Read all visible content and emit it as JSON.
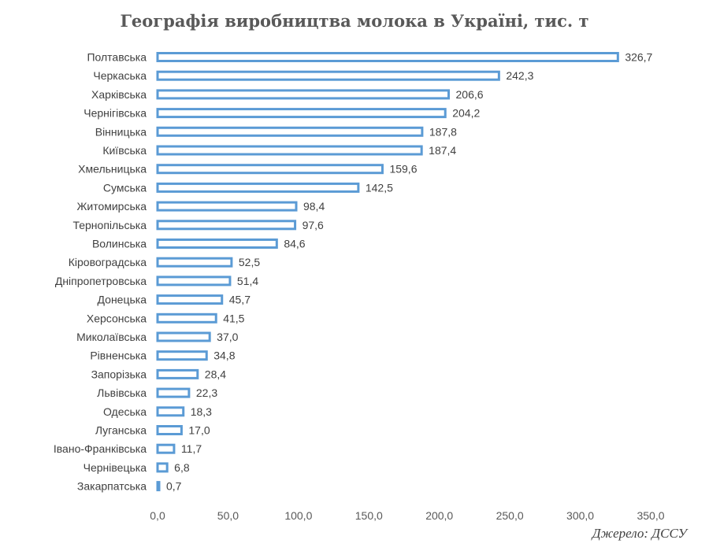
{
  "chart_data": {
    "type": "bar",
    "orientation": "horizontal",
    "title": "Географія виробництва молока в Україні, тис. т",
    "source": "Джерело: ДССУ",
    "categories": [
      "Полтавська",
      "Черкаська",
      "Харківська",
      "Чернігівська",
      "Вінницька",
      "Київська",
      "Хмельницька",
      "Сумська",
      "Житомирська",
      "Тернопільська",
      "Волинська",
      "Кіровоградська",
      "Дніпропетровська",
      "Донецька",
      "Херсонська",
      "Миколаївська",
      "Рівненська",
      "Запорізька",
      "Львівська",
      "Одеська",
      "Луганська",
      "Івано-Франківська",
      "Чернівецька",
      "Закарпатська"
    ],
    "values": [
      326.7,
      242.3,
      206.6,
      204.2,
      187.8,
      187.4,
      159.6,
      142.5,
      98.4,
      97.6,
      84.6,
      52.5,
      51.4,
      45.7,
      41.5,
      37.0,
      34.8,
      28.4,
      22.3,
      18.3,
      17.0,
      11.7,
      6.8,
      0.7
    ],
    "value_labels": [
      "326,7",
      "242,3",
      "206,6",
      "204,2",
      "187,8",
      "187,4",
      "159,6",
      "142,5",
      "98,4",
      "97,6",
      "84,6",
      "52,5",
      "51,4",
      "45,7",
      "41,5",
      "37,0",
      "34,8",
      "28,4",
      "22,3",
      "18,3",
      "17,0",
      "11,7",
      "6,8",
      "0,7"
    ],
    "xlim": [
      0,
      350
    ],
    "xticks": [
      0,
      50,
      100,
      150,
      200,
      250,
      300,
      350
    ],
    "xtick_labels": [
      "0,0",
      "50,0",
      "100,0",
      "150,0",
      "200,0",
      "250,0",
      "300,0",
      "350,0"
    ],
    "grid": false,
    "legend": "none",
    "bar_color": "#5B9BD5"
  }
}
